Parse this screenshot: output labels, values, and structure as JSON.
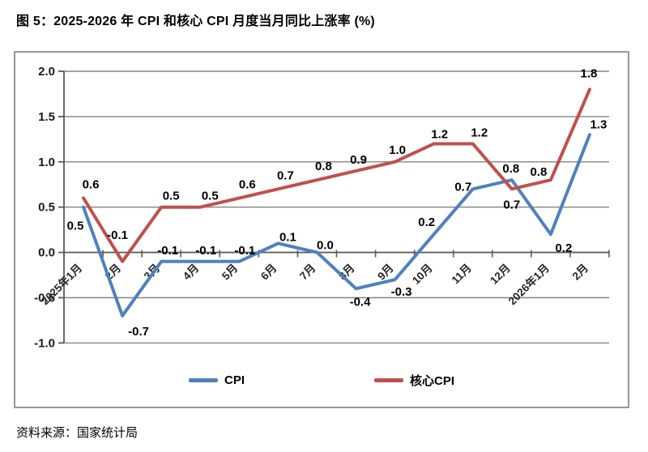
{
  "page": {
    "title": "图 5：2025-2026 年 CPI 和核心 CPI 月度当月同比上涨率 (%)",
    "source": "资料来源：国家统计局"
  },
  "chart_data": {
    "type": "line",
    "title": "2025-2026 年 CPI 和核心 CPI 月度当月同比上涨率 (%)",
    "categories": [
      "2025年1月",
      "2月",
      "3月",
      "4月",
      "5月",
      "6月",
      "7月",
      "8月",
      "9月",
      "10月",
      "11月",
      "12月",
      "2026年1月",
      "2月"
    ],
    "series": [
      {
        "name": "CPI",
        "color": "#4F81BD",
        "values": [
          0.5,
          -0.7,
          -0.1,
          -0.1,
          -0.1,
          0.1,
          0.0,
          -0.4,
          -0.3,
          0.2,
          0.7,
          0.8,
          0.2,
          1.3
        ],
        "label_offsets": [
          [
            -10,
            23
          ],
          [
            20,
            19
          ],
          [
            8,
            -14
          ],
          [
            7,
            -14
          ],
          [
            7,
            -14
          ],
          [
            12,
            -8
          ],
          [
            10,
            -9
          ],
          [
            5,
            16
          ],
          [
            8,
            15
          ],
          [
            -9,
            -15
          ],
          [
            -12,
            -3
          ],
          [
            -1,
            -14
          ],
          [
            16,
            17
          ],
          [
            11,
            -13
          ]
        ]
      },
      {
        "name": "核心CPI",
        "color": "#C0504D",
        "values": [
          0.6,
          -0.1,
          0.5,
          0.5,
          0.6,
          0.7,
          0.8,
          0.9,
          1.0,
          1.2,
          1.2,
          0.7,
          0.8,
          1.8
        ],
        "label_offsets": [
          [
            9,
            -17
          ],
          [
            -6,
            -33
          ],
          [
            12,
            -14
          ],
          [
            12,
            -14
          ],
          [
            10,
            -17
          ],
          [
            9,
            -17
          ],
          [
            8,
            -17
          ],
          [
            3,
            -14
          ],
          [
            3,
            -15
          ],
          [
            7,
            -12
          ],
          [
            8,
            -14
          ],
          [
            0,
            19
          ],
          [
            -15,
            -10
          ],
          [
            -1,
            -20
          ]
        ]
      }
    ],
    "ylim": [
      -1.0,
      2.0
    ],
    "ytick_step": 0.5,
    "ytick_labels": [
      "2.0",
      "1.5",
      "1.0",
      "0.5",
      "0.0",
      "-0.5",
      "-1.0"
    ],
    "grid": true,
    "legend_position": "bottom-inside",
    "colors": {
      "grid": "#848484",
      "axis": "#595959",
      "tick_text": "#1a1a1a",
      "data_label": "#000000"
    }
  }
}
